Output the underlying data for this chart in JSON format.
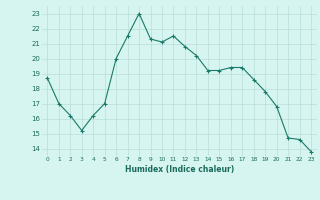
{
  "x": [
    0,
    1,
    2,
    3,
    4,
    5,
    6,
    7,
    8,
    9,
    10,
    11,
    12,
    13,
    14,
    15,
    16,
    17,
    18,
    19,
    20,
    21,
    22,
    23
  ],
  "y": [
    18.7,
    17.0,
    16.2,
    15.2,
    16.2,
    17.0,
    20.0,
    21.5,
    23.0,
    21.3,
    21.1,
    21.5,
    20.8,
    20.2,
    19.2,
    19.2,
    19.4,
    19.4,
    18.6,
    17.8,
    16.8,
    14.7,
    14.6,
    13.8
  ],
  "line_color": "#1a7a6a",
  "marker": "+",
  "marker_size": 3,
  "bg_color": "#d6f5f0",
  "grid_color": "#b8ddd8",
  "xlabel": "Humidex (Indice chaleur)",
  "xlim": [
    -0.5,
    23.5
  ],
  "ylim": [
    13.5,
    23.5
  ],
  "yticks": [
    14,
    15,
    16,
    17,
    18,
    19,
    20,
    21,
    22,
    23
  ],
  "xticks": [
    0,
    1,
    2,
    3,
    4,
    5,
    6,
    7,
    8,
    9,
    10,
    11,
    12,
    13,
    14,
    15,
    16,
    17,
    18,
    19,
    20,
    21,
    22,
    23
  ]
}
